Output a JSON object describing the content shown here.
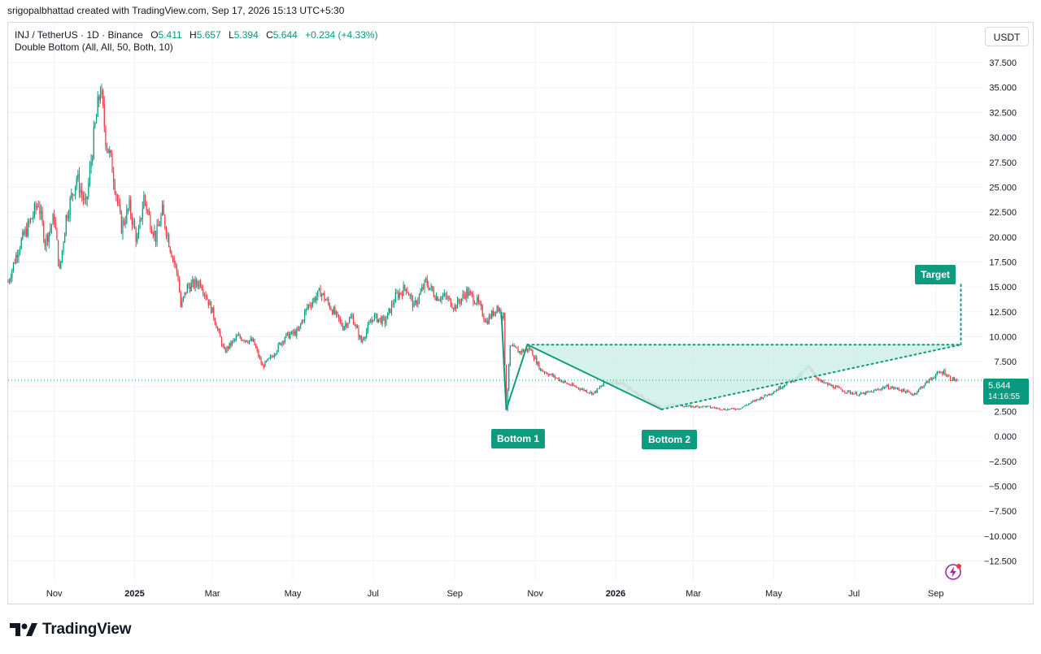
{
  "attribution": "srigopalbhattad created with TradingView.com, Sep 17, 2026 15:13 UTC+5:30",
  "legend": {
    "symbol": "INJ / TetherUS · 1D · Binance",
    "open_label": "O",
    "open": "5.411",
    "high_label": "H",
    "high": "5.657",
    "low_label": "L",
    "low": "5.394",
    "close_label": "C",
    "close": "5.644",
    "change": "+0.234 (+4.33%)"
  },
  "indicator": "Double Bottom (All, All, 50, Both, 10)",
  "currency_button": "USDT",
  "price_tag": {
    "price": "5.644",
    "countdown": "14:16:55"
  },
  "pattern_labels": {
    "bottom1": "Bottom 1",
    "bottom2": "Bottom 2",
    "target": "Target"
  },
  "footer_brand": "TradingView",
  "colors": {
    "up": "#089981",
    "down": "#f23645",
    "pattern": "#0f9b80",
    "fill": "#ccefe6",
    "bolt": "#9c27b0"
  },
  "icons": {
    "alert": "bolt-icon",
    "logo": "tradingview-logo-icon"
  },
  "chart_data": {
    "type": "candlestick",
    "y_axis_ticks": [
      "37.500",
      "35.000",
      "32.500",
      "30.000",
      "27.500",
      "25.000",
      "22.500",
      "20.000",
      "17.500",
      "15.000",
      "12.500",
      "10.000",
      "7.500",
      "5.000",
      "2.500",
      "0.000",
      "−2.500",
      "−5.000",
      "−7.500",
      "−10.000",
      "−12.500"
    ],
    "y_axis_ticks_numeric": [
      37.5,
      35,
      32.5,
      30,
      27.5,
      25,
      22.5,
      20,
      17.5,
      15,
      12.5,
      10,
      7.5,
      5,
      2.5,
      0,
      -2.5,
      -5,
      -7.5,
      -10,
      -12.5
    ],
    "ylim": [
      -14.5,
      41.5
    ],
    "x_axis_labels": [
      {
        "label": "Nov",
        "date": "2024-11-01",
        "bold": false
      },
      {
        "label": "2025",
        "date": "2025-01-01",
        "bold": true
      },
      {
        "label": "Mar",
        "date": "2025-03-01",
        "bold": false
      },
      {
        "label": "May",
        "date": "2025-05-01",
        "bold": false
      },
      {
        "label": "Jul",
        "date": "2025-07-01",
        "bold": false
      },
      {
        "label": "Sep",
        "date": "2025-09-01",
        "bold": false
      },
      {
        "label": "Nov",
        "date": "2025-11-01",
        "bold": false
      },
      {
        "label": "2026",
        "date": "2026-01-01",
        "bold": true
      },
      {
        "label": "Mar",
        "date": "2026-03-01",
        "bold": false
      },
      {
        "label": "May",
        "date": "2026-05-01",
        "bold": false
      },
      {
        "label": "Jul",
        "date": "2026-07-01",
        "bold": false
      },
      {
        "label": "Sep",
        "date": "2026-09-01",
        "bold": false
      }
    ],
    "xlim": [
      "2024-09-27",
      "2026-10-07"
    ],
    "grid": true,
    "current_price": 5.644,
    "price_path": [
      [
        "2024-09-27",
        15.5
      ],
      [
        "2024-10-05",
        19
      ],
      [
        "2024-10-12",
        21
      ],
      [
        "2024-10-20",
        23.5
      ],
      [
        "2024-10-25",
        19.5
      ],
      [
        "2024-11-01",
        22
      ],
      [
        "2024-11-05",
        16.5
      ],
      [
        "2024-11-10",
        22
      ],
      [
        "2024-11-18",
        26
      ],
      [
        "2024-11-25",
        23
      ],
      [
        "2024-12-01",
        30
      ],
      [
        "2024-12-06",
        35
      ],
      [
        "2024-12-10",
        30
      ],
      [
        "2024-12-15",
        27
      ],
      [
        "2024-12-22",
        21
      ],
      [
        "2024-12-28",
        23
      ],
      [
        "2025-01-03",
        19.5
      ],
      [
        "2025-01-08",
        24
      ],
      [
        "2025-01-13",
        21.5
      ],
      [
        "2025-01-17",
        20
      ],
      [
        "2025-01-22",
        22.5
      ],
      [
        "2025-01-28",
        19
      ],
      [
        "2025-02-03",
        16
      ],
      [
        "2025-02-05",
        13
      ],
      [
        "2025-02-10",
        15
      ],
      [
        "2025-02-20",
        15.5
      ],
      [
        "2025-03-01",
        12.5
      ],
      [
        "2025-03-10",
        8.5
      ],
      [
        "2025-03-20",
        10
      ],
      [
        "2025-04-01",
        9.5
      ],
      [
        "2025-04-08",
        7
      ],
      [
        "2025-04-15",
        8
      ],
      [
        "2025-04-25",
        10
      ],
      [
        "2025-05-05",
        10.5
      ],
      [
        "2025-05-12",
        13
      ],
      [
        "2025-05-22",
        14.5
      ],
      [
        "2025-06-01",
        12.5
      ],
      [
        "2025-06-08",
        11
      ],
      [
        "2025-06-15",
        12
      ],
      [
        "2025-06-22",
        9.5
      ],
      [
        "2025-07-01",
        12
      ],
      [
        "2025-07-10",
        11.5
      ],
      [
        "2025-07-18",
        14
      ],
      [
        "2025-07-26",
        15
      ],
      [
        "2025-08-01",
        13
      ],
      [
        "2025-08-10",
        15.5
      ],
      [
        "2025-08-18",
        14
      ],
      [
        "2025-08-25",
        14
      ],
      [
        "2025-09-01",
        13
      ],
      [
        "2025-09-10",
        14.5
      ],
      [
        "2025-09-18",
        13.5
      ],
      [
        "2025-09-25",
        11.5
      ],
      [
        "2025-10-03",
        13
      ],
      [
        "2025-10-08",
        12
      ],
      [
        "2025-10-10",
        2.7
      ],
      [
        "2025-10-13",
        9
      ],
      [
        "2025-10-20",
        8.5
      ],
      [
        "2025-10-28",
        8.8
      ],
      [
        "2025-11-05",
        6.7
      ],
      [
        "2025-11-15",
        6
      ],
      [
        "2025-11-25",
        5.3
      ],
      [
        "2025-12-05",
        4.8
      ],
      [
        "2025-12-15",
        4.3
      ],
      [
        "2025-12-25",
        5.5
      ],
      [
        "2026-01-05",
        5.3
      ],
      [
        "2026-01-15",
        4.5
      ],
      [
        "2026-01-25",
        3.6
      ],
      [
        "2026-02-05",
        2.9
      ],
      [
        "2026-02-15",
        3.2
      ],
      [
        "2026-02-25",
        3.0
      ],
      [
        "2026-03-10",
        3.0
      ],
      [
        "2026-03-25",
        2.7
      ],
      [
        "2026-04-05",
        2.8
      ],
      [
        "2026-04-20",
        3.8
      ],
      [
        "2026-05-01",
        4.5
      ],
      [
        "2026-05-10",
        5.3
      ],
      [
        "2026-05-20",
        6.0
      ],
      [
        "2026-05-28",
        7.0
      ],
      [
        "2026-06-05",
        5.5
      ],
      [
        "2026-06-15",
        5.0
      ],
      [
        "2026-06-25",
        4.5
      ],
      [
        "2026-07-05",
        4.2
      ],
      [
        "2026-07-15",
        4.5
      ],
      [
        "2026-07-25",
        5.0
      ],
      [
        "2026-08-05",
        4.7
      ],
      [
        "2026-08-15",
        4.2
      ],
      [
        "2026-08-25",
        5.4
      ],
      [
        "2026-09-01",
        6.2
      ],
      [
        "2026-09-07",
        6.5
      ],
      [
        "2026-09-12",
        5.8
      ],
      [
        "2026-09-17",
        5.644
      ]
    ],
    "pattern": {
      "name": "Double Bottom",
      "bottom1": {
        "date": "2025-10-10",
        "price": 2.7
      },
      "peak": {
        "date": "2025-10-26",
        "price": 9.2
      },
      "bottom2": {
        "date": "2026-02-05",
        "price": 2.7
      },
      "neckline_start": {
        "date": "2025-10-26",
        "price": 9.2
      },
      "neckline_end": {
        "date": "2026-09-20",
        "price": 9.2
      },
      "right_side_end": {
        "date": "2026-09-20",
        "price": 9.2
      },
      "target": {
        "date": "2026-09-20",
        "price": 15.5
      }
    }
  }
}
